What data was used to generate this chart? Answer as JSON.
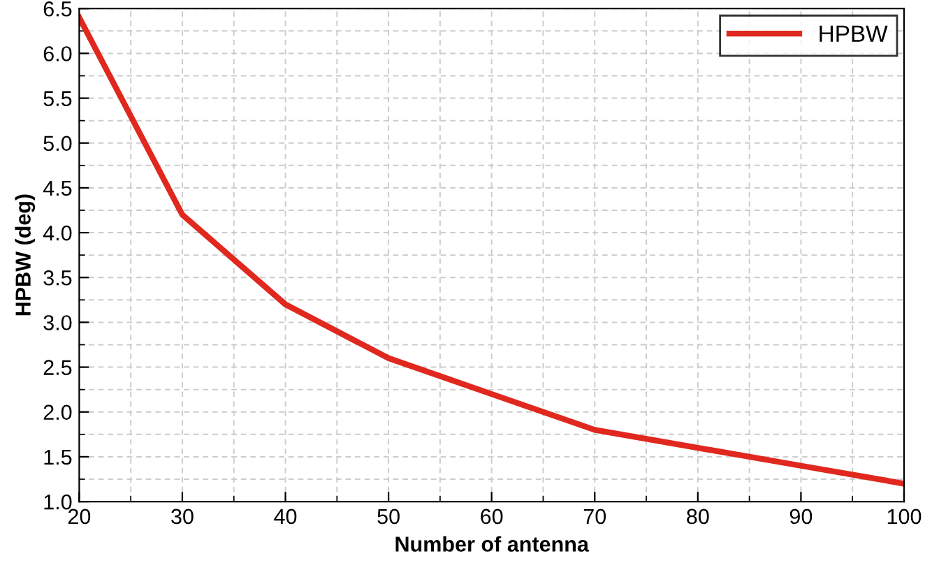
{
  "chart_data": {
    "type": "line",
    "xlabel": "Number of antenna",
    "ylabel": "HPBW (deg)",
    "x": [
      20,
      30,
      40,
      50,
      60,
      70,
      80,
      90,
      100
    ],
    "series": [
      {
        "name": "HPBW",
        "color": "#e0281e",
        "values": [
          6.4,
          4.2,
          3.2,
          2.6,
          2.2,
          1.8,
          1.6,
          1.4,
          1.2
        ]
      }
    ],
    "xlim": [
      20,
      100
    ],
    "ylim": [
      1.0,
      6.5
    ],
    "xticks": [
      20,
      30,
      40,
      50,
      60,
      70,
      80,
      90,
      100
    ],
    "yticks": [
      {
        "value": 1,
        "label": "1.0"
      },
      {
        "value": 1.5,
        "label": "1.5"
      },
      {
        "value": 2,
        "label": "2.0"
      },
      {
        "value": 2.5,
        "label": "2.5"
      },
      {
        "value": 3,
        "label": "3.0"
      },
      {
        "value": 3.5,
        "label": "3.5"
      },
      {
        "value": 4,
        "label": "4.0"
      },
      {
        "value": 4.5,
        "label": "4.5"
      },
      {
        "value": 5,
        "label": "5.0"
      },
      {
        "value": 5.5,
        "label": "5.5"
      },
      {
        "value": 6,
        "label": "6.0"
      },
      {
        "value": 6.5,
        "label": "6.5"
      }
    ],
    "grid": true,
    "legend": "top right",
    "marker": "none",
    "line_style": "solid"
  }
}
